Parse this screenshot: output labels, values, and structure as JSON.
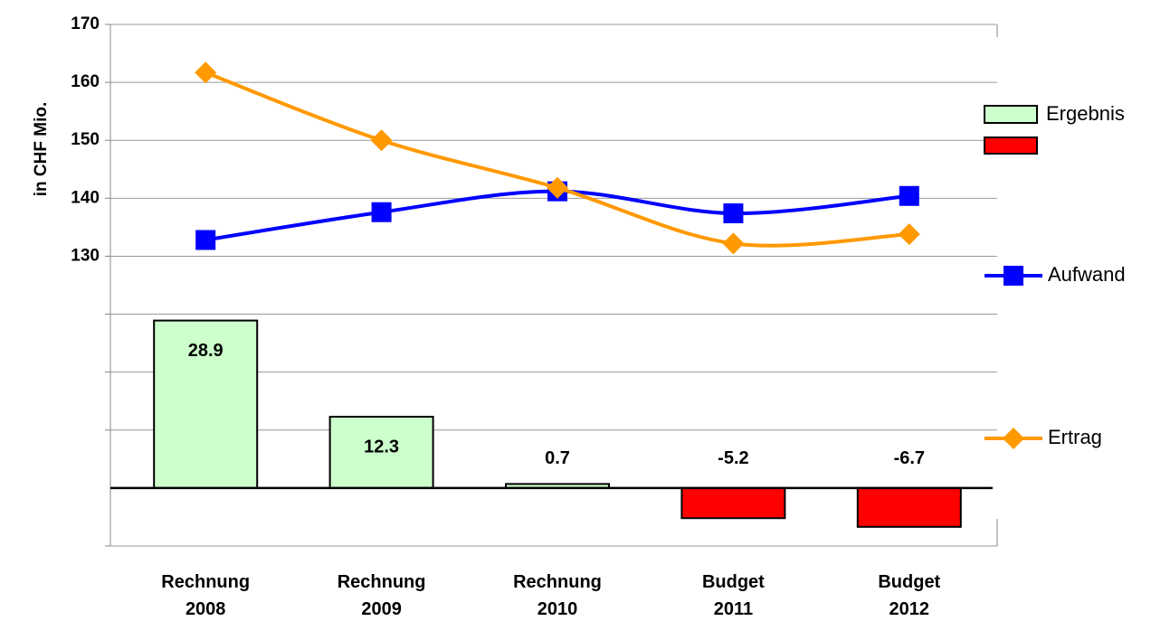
{
  "chart_data": {
    "type": "bar_line",
    "y_label": "in CHF Mio.",
    "categories": [
      "Rechnung 2008",
      "Rechnung 2009",
      "Rechnung 2010",
      "Budget 2011",
      "Budget 2012"
    ],
    "ylim": [
      80,
      170
    ],
    "yticks": [
      130,
      140,
      150,
      160,
      170
    ],
    "y2lim": [
      -10,
      80
    ],
    "y2ticks": [
      -10,
      10,
      20,
      30
    ],
    "grid": true,
    "series": [
      {
        "name": "Ergebnis",
        "type": "bar",
        "axis": "y2",
        "color": "#ccffcc",
        "negative_color": "#ff0000",
        "values": [
          28.9,
          12.3,
          0.7,
          -5.2,
          -6.7
        ]
      },
      {
        "name": "Aufwand",
        "type": "line",
        "color": "#0000ff",
        "marker": "square",
        "values": [
          132.8,
          137.6,
          141.2,
          137.4,
          140.4
        ]
      },
      {
        "name": "Ertrag",
        "type": "line",
        "color": "#ff9900",
        "marker": "diamond",
        "values": [
          161.7,
          150.0,
          141.8,
          132.2,
          133.8
        ]
      }
    ]
  }
}
